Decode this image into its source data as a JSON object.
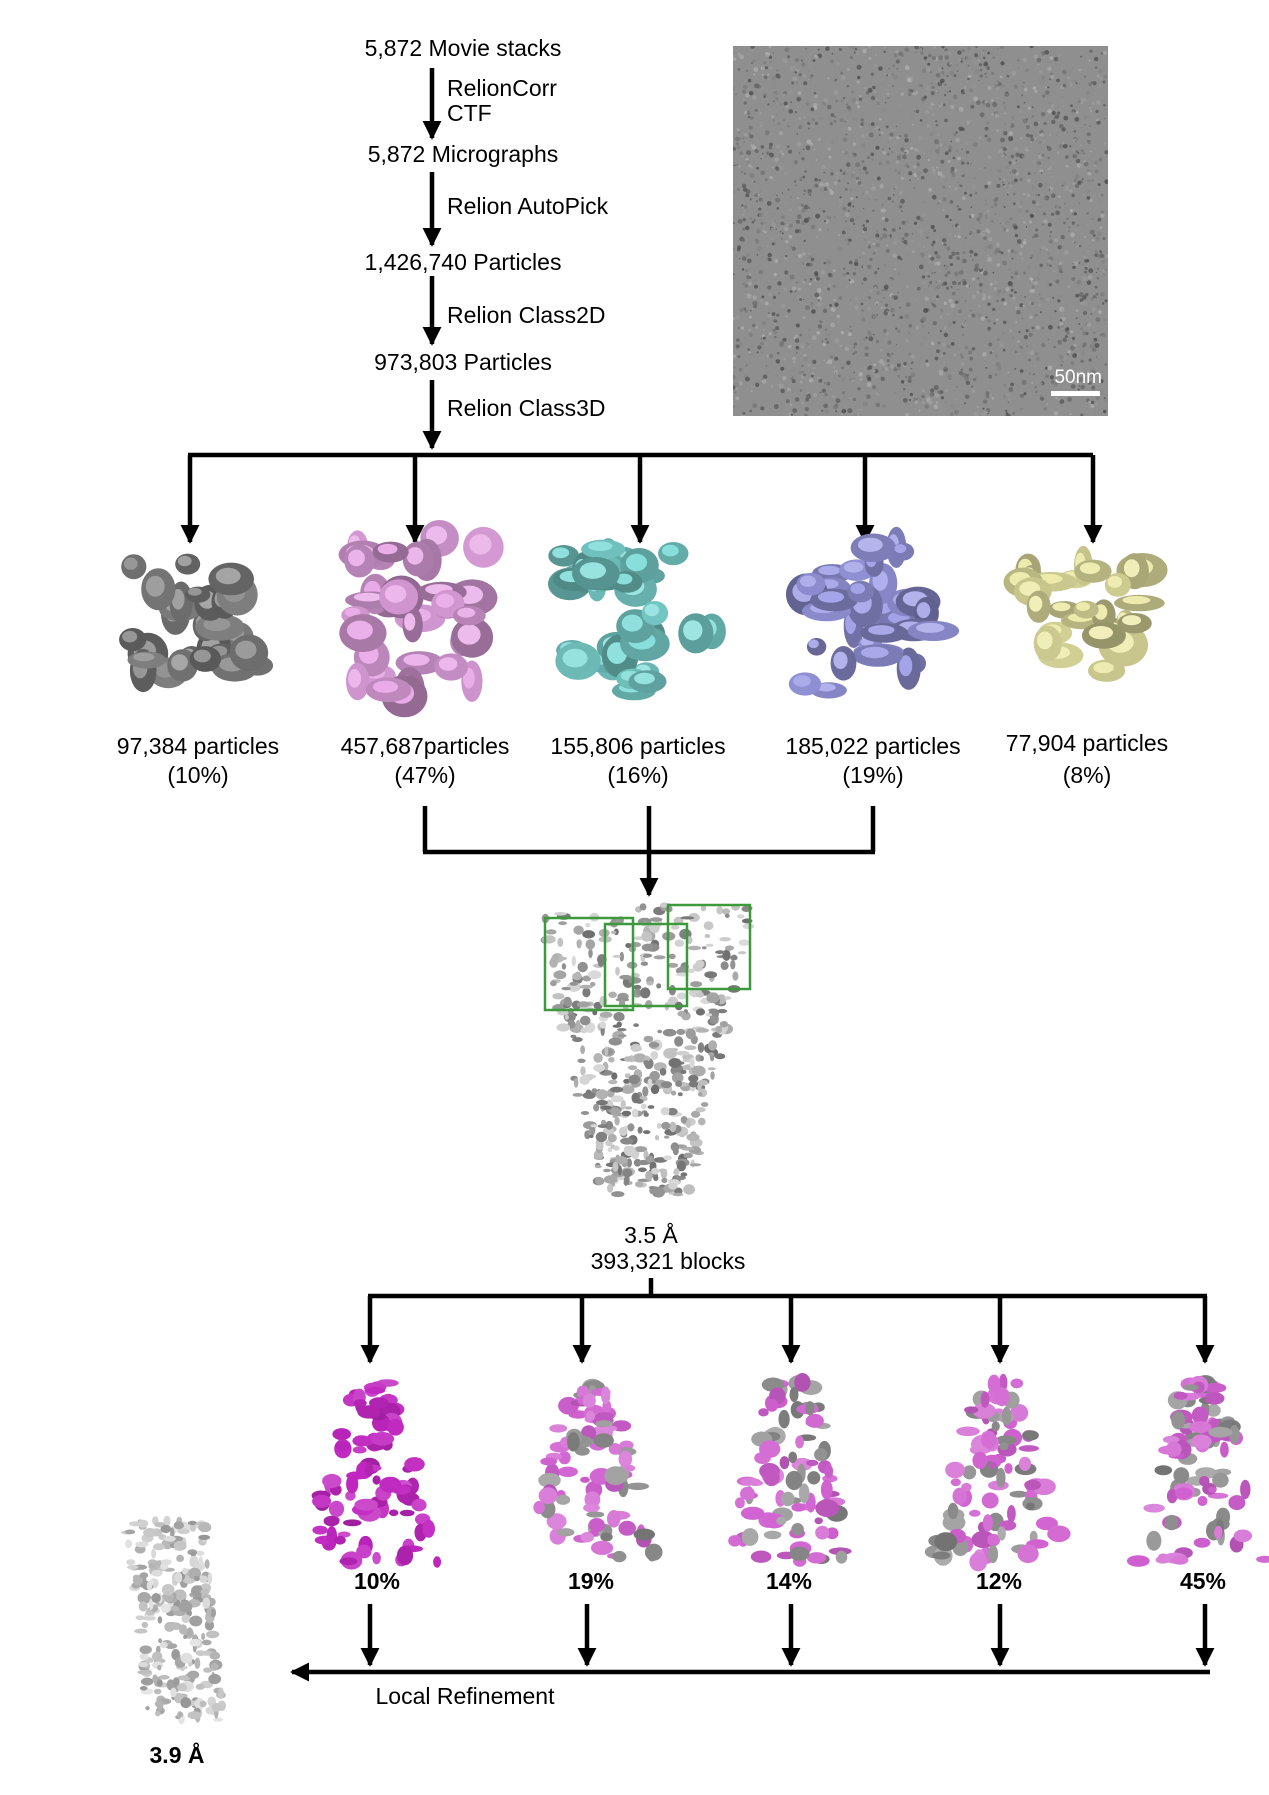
{
  "pipeline": {
    "steps": [
      {
        "count": "5,872 Movie stacks"
      },
      {
        "count": "5,872 Micrographs"
      },
      {
        "count": "1,426,740 Particles"
      },
      {
        "count": "973,803 Particles"
      }
    ],
    "processes": [
      {
        "line1": "RelionCorr",
        "line2": "CTF"
      },
      {
        "line1": "Relion AutoPick"
      },
      {
        "line1": "Relion Class2D"
      },
      {
        "line1": "Relion Class3D"
      }
    ]
  },
  "micrograph": {
    "scale_label": "50nm"
  },
  "class3d": [
    {
      "particles": "97,384 particles",
      "percent": "(10%)",
      "color": "#8c8c8c"
    },
    {
      "particles": "457,687particles",
      "percent": "(47%)",
      "color": "#e7a6e6"
    },
    {
      "particles": "155,806 particles",
      "percent": "(16%)",
      "color": "#80dcd8"
    },
    {
      "particles": "185,022 particles",
      "percent": "(19%)",
      "color": "#9c9ce6"
    },
    {
      "particles": "77,904 particles",
      "percent": "(8%)",
      "color": "#ece9a6"
    }
  ],
  "consensus": {
    "resolution": "3.5 Å",
    "blocks": "393,321 blocks"
  },
  "box_color": "#3c9a3c",
  "block_classes": [
    {
      "percent": "10%"
    },
    {
      "percent": "19%"
    },
    {
      "percent": "14%"
    },
    {
      "percent": "12%"
    },
    {
      "percent": "45%"
    }
  ],
  "local_refinement": {
    "label": "Local Refinement",
    "resolution": "3.9 Å"
  }
}
